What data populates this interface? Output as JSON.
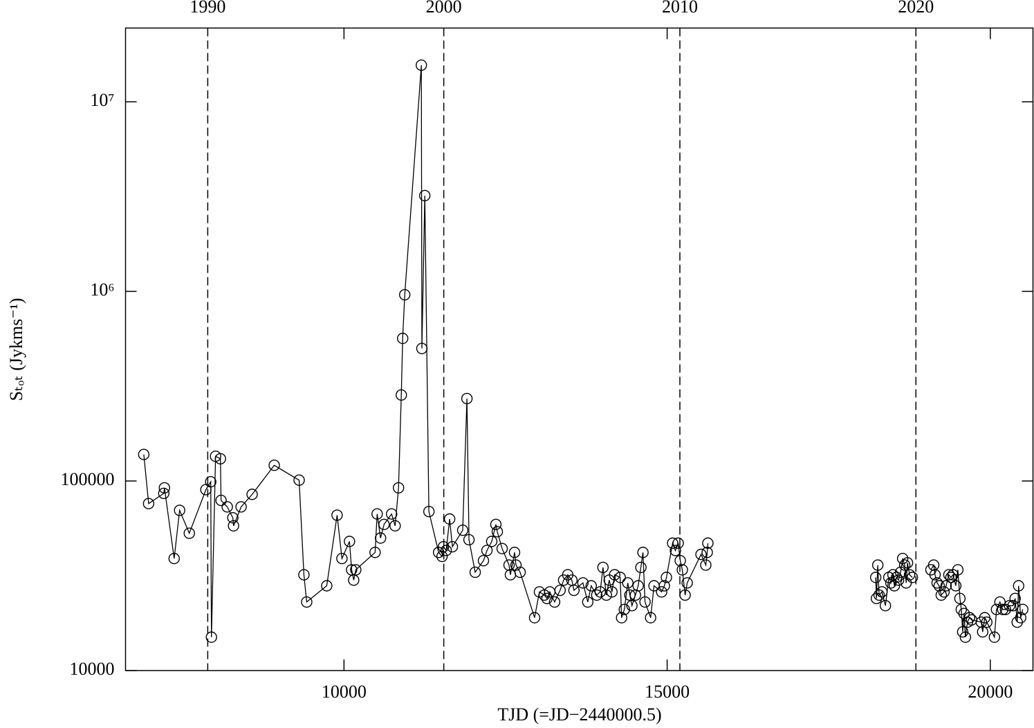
{
  "chart_data": {
    "type": "scatter-line",
    "xlabel": "TJD (=JD−2440000.5)",
    "ylabel": "Sₜₒₜ (Jykms⁻¹)",
    "xlim": [
      6620,
      20660
    ],
    "ylim": [
      10000,
      24500000
    ],
    "ylog": true,
    "xticks": [
      10000,
      15000,
      20000
    ],
    "yticks": [
      10000,
      100000,
      {
        "value": 1000000,
        "label": "10⁶"
      },
      {
        "value": 10000000,
        "label": "10⁷"
      }
    ],
    "x2ticks": [
      {
        "value": 7892,
        "label": "1990"
      },
      {
        "value": 11544,
        "label": "2000"
      },
      {
        "value": 15197,
        "label": "2010"
      },
      {
        "value": 18849,
        "label": "2020"
      }
    ],
    "x2_grid": "dashed",
    "color": "#000000",
    "marker": "open-circle",
    "x": [
      6902,
      6977,
      7212,
      7222,
      7372,
      7457,
      7607,
      7863,
      7938,
      7949,
      8013,
      8088,
      8098,
      8194,
      8280,
      8291,
      8408,
      8579,
      8921,
      9306,
      9380,
      9423,
      9733,
      9893,
      9968,
      10085,
      10118,
      10150,
      10182,
      10481,
      10513,
      10566,
      10620,
      10737,
      10791,
      10844,
      10887,
      10908,
      10940,
      11197,
      11205,
      11250,
      11314,
      11464,
      11517,
      11539,
      11581,
      11635,
      11677,
      11837,
      11902,
      11934,
      12030,
      12158,
      12212,
      12286,
      12350,
      12372,
      12447,
      12554,
      12575,
      12639,
      12661,
      12725,
      12949,
      13024,
      13099,
      13141,
      13184,
      13259,
      13344,
      13398,
      13462,
      13526,
      13558,
      13697,
      13772,
      13825,
      13911,
      13964,
      14007,
      14060,
      14103,
      14146,
      14188,
      14274,
      14295,
      14338,
      14391,
      14423,
      14455,
      14509,
      14552,
      14594,
      14626,
      14658,
      14744,
      14797,
      14915,
      14957,
      14989,
      15085,
      15128,
      15171,
      15203,
      15235,
      15278,
      15310,
      15524,
      15598,
      15620,
      15630,
      null,
      18227,
      18238,
      18259,
      18280,
      18323,
      18377,
      18430,
      18462,
      18494,
      18516,
      18548,
      18580,
      18612,
      18644,
      18676,
      18698,
      18719,
      18751,
      18794,
      null,
      19081,
      19124,
      19145,
      19177,
      19209,
      19241,
      19284,
      19316,
      19359,
      19391,
      19423,
      19466,
      19498,
      19530,
      19551,
      19573,
      19594,
      19615,
      19647,
      19679,
      19711,
      19861,
      19882,
      19914,
      19946,
      20064,
      20096,
      20149,
      20192,
      20235,
      20299,
      20352,
      20384,
      20416,
      20438,
      20470,
      20502
    ],
    "values": [
      138000,
      76000,
      86000,
      92000,
      39000,
      70000,
      53000,
      90000,
      99000,
      15000,
      135000,
      131000,
      79000,
      73000,
      64000,
      58000,
      73000,
      85000,
      121000,
      101000,
      32000,
      23000,
      28000,
      66000,
      39000,
      48000,
      34000,
      30000,
      34000,
      42000,
      67000,
      50000,
      59000,
      67000,
      58000,
      92000,
      284000,
      565000,
      960000,
      15600000,
      500000,
      3200000,
      69000,
      42000,
      40000,
      45000,
      43000,
      63000,
      45000,
      55000,
      272000,
      49000,
      33000,
      38000,
      43000,
      48000,
      59000,
      54000,
      44000,
      36000,
      32000,
      42000,
      36000,
      33000,
      19000,
      26000,
      25000,
      24000,
      26000,
      23000,
      26500,
      30000,
      32000,
      30000,
      26500,
      29000,
      23000,
      28000,
      25000,
      26000,
      35000,
      25000,
      30000,
      26000,
      32000,
      31000,
      19000,
      21000,
      29000,
      25000,
      22000,
      25000,
      28000,
      35000,
      42000,
      23000,
      19000,
      28000,
      26000,
      28000,
      31000,
      47000,
      43000,
      47000,
      38000,
      34000,
      25000,
      29000,
      41000,
      36000,
      42000,
      47000,
      null,
      31000,
      24000,
      36000,
      25000,
      26000,
      22000,
      31000,
      29000,
      32000,
      28000,
      31000,
      30000,
      33000,
      39000,
      36000,
      29000,
      37000,
      32000,
      31000,
      null,
      34000,
      36000,
      32000,
      29000,
      28000,
      25000,
      26000,
      28000,
      32000,
      31000,
      32000,
      28000,
      34000,
      24000,
      21000,
      16000,
      20000,
      15000,
      18000,
      19000,
      18500,
      18000,
      16000,
      19000,
      18000,
      15000,
      21000,
      23000,
      21000,
      21000,
      22000,
      22000,
      24000,
      18000,
      28000,
      19000,
      21000
    ]
  }
}
